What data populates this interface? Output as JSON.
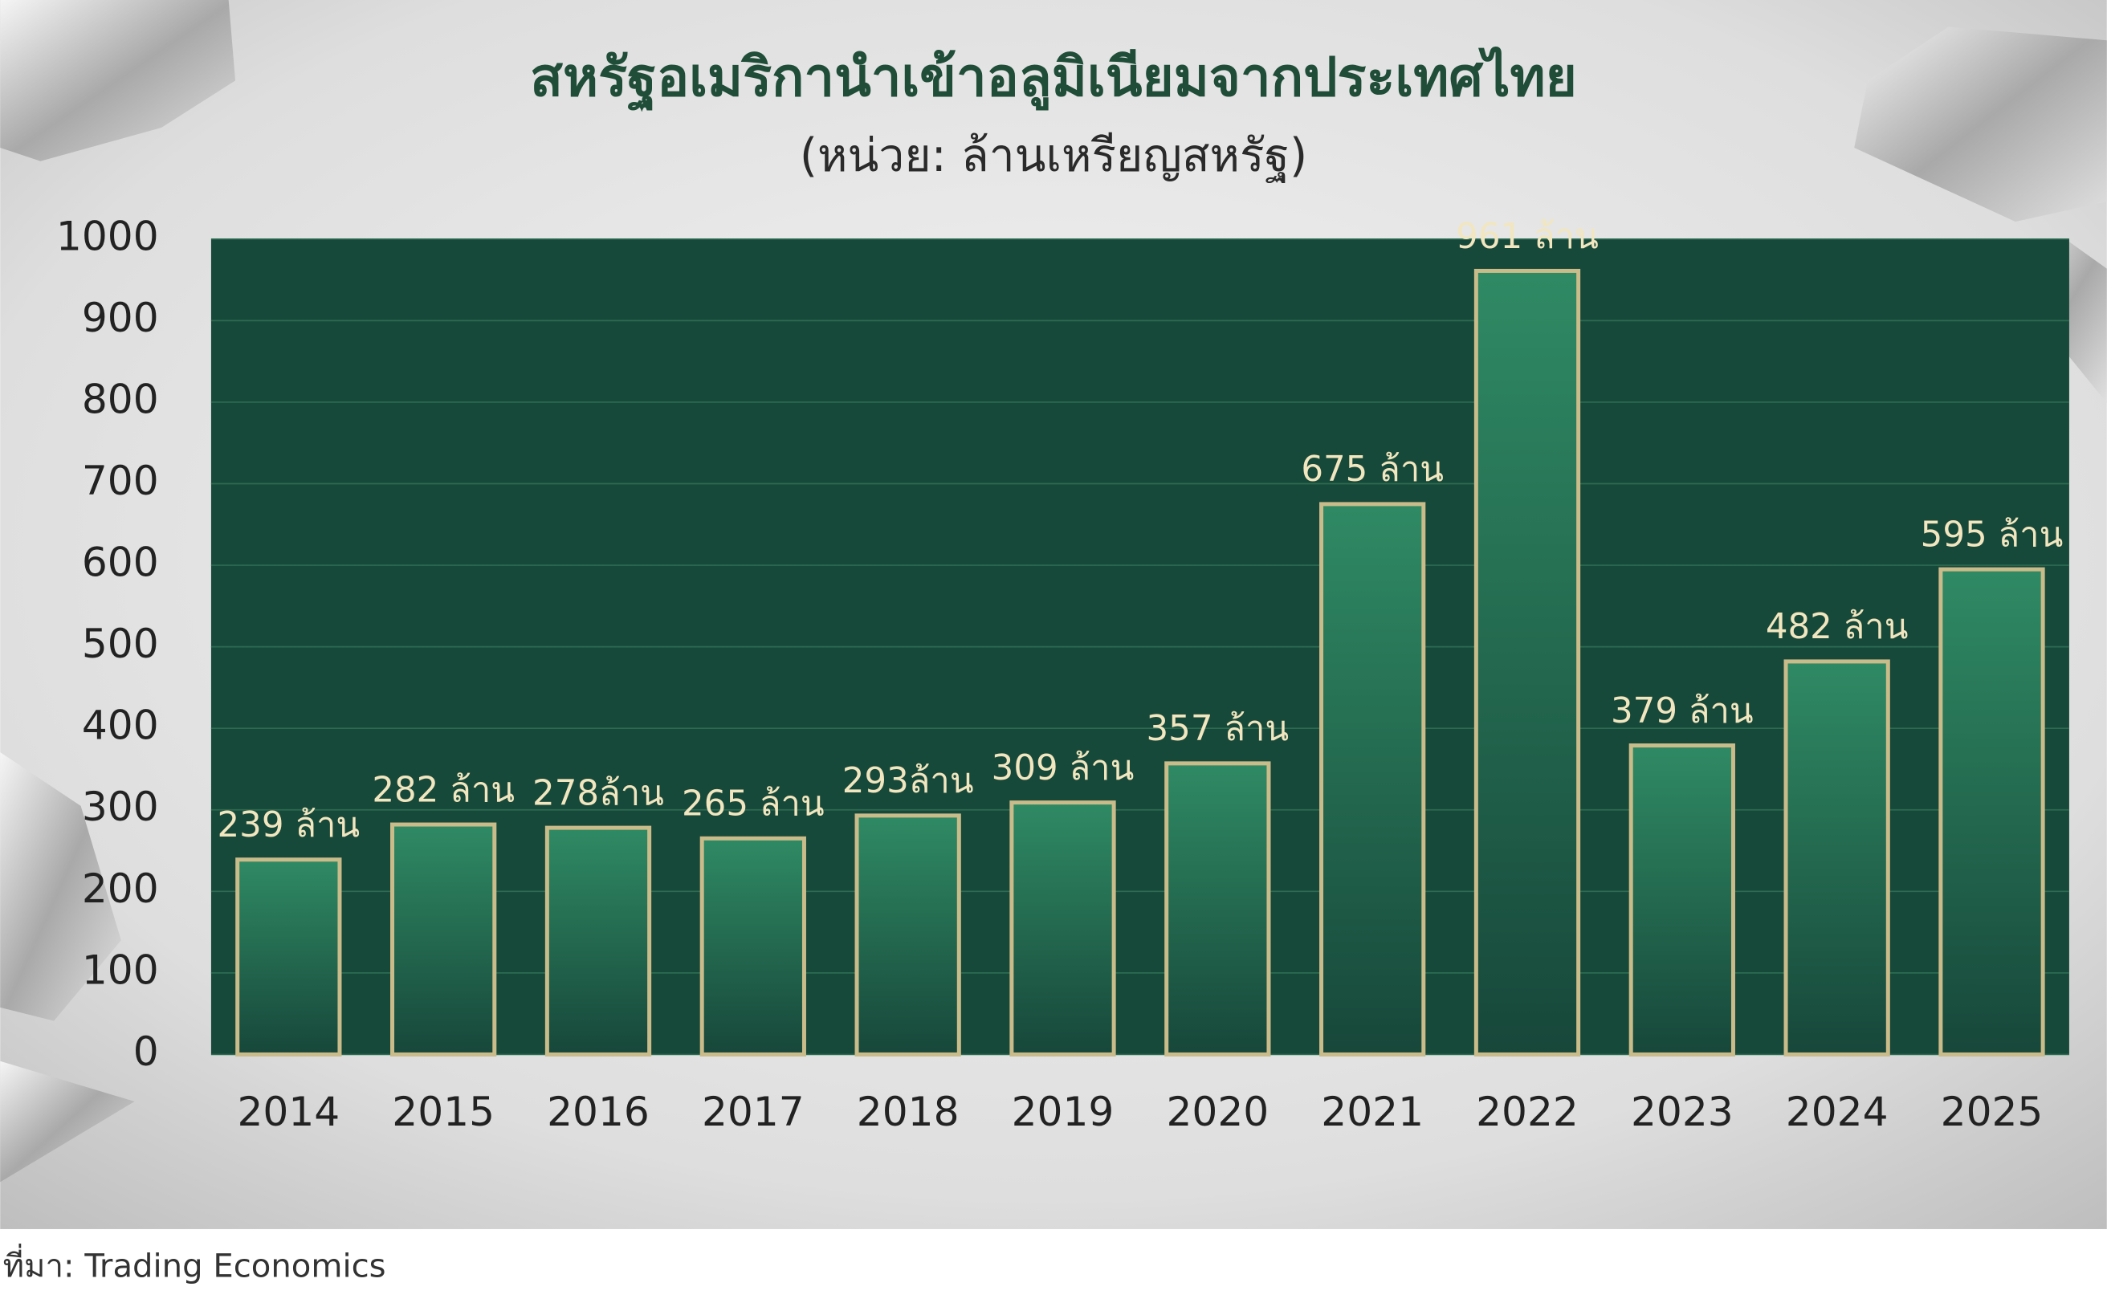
{
  "chart_data": {
    "type": "bar",
    "title": "สหรัฐอเมริกานำเข้าอลูมิเนียมจากประเทศไทย",
    "subtitle": "(หน่วย: ล้านเหรียญสหรัฐ)",
    "source": "ที่มา: Trading Economics",
    "categories": [
      "2014",
      "2015",
      "2016",
      "2017",
      "2018",
      "2019",
      "2020",
      "2021",
      "2022",
      "2023",
      "2024",
      "2025"
    ],
    "values": [
      239,
      282,
      278,
      265,
      293,
      309,
      357,
      675,
      961,
      379,
      482,
      595
    ],
    "value_labels": [
      "239 ล้าน",
      "282 ล้าน",
      "278ล้าน",
      "265 ล้าน",
      "293ล้าน",
      "309 ล้าน",
      "357 ล้าน",
      "675 ล้าน",
      "961 ล้าน",
      "379 ล้าน",
      "482 ล้าน",
      "595 ล้าน"
    ],
    "color": "#2a7a5a",
    "ylim": [
      0,
      1000
    ],
    "yticks": [
      0,
      100,
      200,
      300,
      400,
      500,
      600,
      700,
      800,
      900,
      1000
    ],
    "grid": true
  }
}
